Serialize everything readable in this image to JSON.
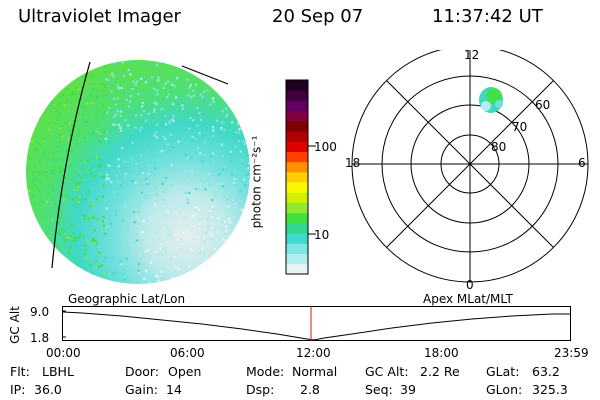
{
  "header": {
    "instrument": "Ultraviolet Imager",
    "date": "20 Sep 07",
    "time": "11:37:42 UT"
  },
  "colorbar": {
    "unit_label": "photon cm⁻²s⁻¹",
    "ticks": [
      "100",
      "10"
    ],
    "colors": [
      "#e8f4f4",
      "#b0eeee",
      "#7fe6e0",
      "#40d8d0",
      "#30d890",
      "#40e040",
      "#90e830",
      "#d0f000",
      "#f8f800",
      "#ffd000",
      "#ff9000",
      "#ff4000",
      "#e00000",
      "#b00000",
      "#800000",
      "#800040",
      "#600060",
      "#400040",
      "#200020"
    ]
  },
  "polar_plot": {
    "mlt_labels": {
      "top": "12",
      "bottom": "0",
      "left": "18",
      "right": "6"
    },
    "lat_labels": [
      "60",
      "70",
      "80"
    ]
  },
  "timeline": {
    "y_axis_label": "GC Alt",
    "y_ticks": [
      "9.0",
      "1.8"
    ],
    "left_label": "Geographic Lat/Lon",
    "right_label": "Apex  MLat/MLT",
    "x_ticks": [
      "00:00",
      "06:00",
      "12:00",
      "18:00",
      "23:59"
    ],
    "line_color": "#000000",
    "marker_color": "#cc2200"
  },
  "footer": {
    "flt_label": "Flt:",
    "flt_value": "LBHL",
    "ip_label": "IP:",
    "ip_value": "36.0",
    "door_label": "Door:",
    "door_value": "Open",
    "gain_label": "Gain:",
    "gain_value": "14",
    "mode_label": "Mode:",
    "mode_value": "Normal",
    "dsp_label": "Dsp:",
    "dsp_value": "2.8",
    "gcalt_label": "GC Alt:",
    "gcalt_value": "2.2 Re",
    "seq_label": "Seq:",
    "seq_value": "39",
    "glat_label": "GLat:",
    "glat_value": "63.2",
    "glon_label": "GLon:",
    "glon_value": "325.3"
  }
}
